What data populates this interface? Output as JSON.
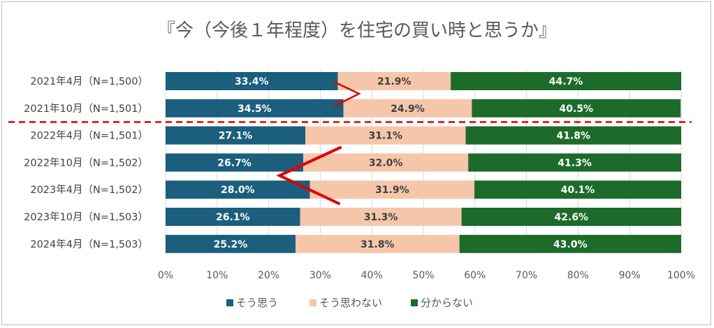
{
  "chart_data": {
    "type": "bar",
    "orientation": "horizontal",
    "stacked": "percent",
    "title": "『今（今後１年程度）を住宅の買い時と思うか』",
    "categories": [
      "2021年4月（N=1,500）",
      "2021年10月（N=1,501）",
      "2022年4月（N=1,501）",
      "2022年10月（N=1,502）",
      "2023年4月（N=1,502）",
      "2023年10月（N=1,503）",
      "2024年4月（N=1,503）"
    ],
    "series": [
      {
        "name": "そう思う",
        "color": "#1b5e7e",
        "label_color": "#ffffff",
        "values": [
          33.4,
          34.5,
          27.1,
          26.7,
          28.0,
          26.1,
          25.2
        ],
        "labels": [
          "33.4%",
          "34.5%",
          "27.1%",
          "26.7%",
          "28.0%",
          "26.1%",
          "25.2%"
        ]
      },
      {
        "name": "そう思わない",
        "color": "#f6c6aa",
        "label_color": "#404040",
        "values": [
          21.9,
          24.9,
          31.1,
          32.0,
          31.9,
          31.3,
          31.8
        ],
        "labels": [
          "21.9%",
          "24.9%",
          "31.1%",
          "32.0%",
          "31.9%",
          "31.3%",
          "31.8%"
        ]
      },
      {
        "name": "分からない",
        "color": "#1c6b2a",
        "label_color": "#ffffff",
        "values": [
          44.7,
          40.5,
          41.8,
          41.3,
          40.1,
          42.6,
          43.0
        ],
        "labels": [
          "44.7%",
          "40.5%",
          "41.8%",
          "41.3%",
          "40.1%",
          "42.6%",
          "43.0%"
        ]
      }
    ],
    "x_ticks": [
      "0%",
      "10%",
      "20%",
      "30%",
      "40%",
      "50%",
      "60%",
      "70%",
      "80%",
      "90%",
      "100%"
    ],
    "xlim": [
      0,
      100
    ],
    "grid": "vertical",
    "grid_color": "#d9d9d9",
    "legend_position": "bottom",
    "annotations": {
      "dashed_separator_between": [
        "2021年10月（N=1,501）",
        "2022年4月（N=1,501）"
      ],
      "dashed_separator_color": "#e00000",
      "arrow_color": "#e00000"
    }
  }
}
